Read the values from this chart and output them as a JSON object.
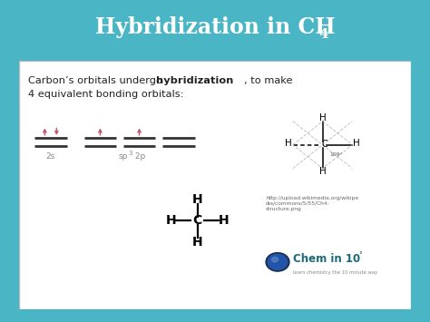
{
  "title_main": "Hybridization in CH",
  "title_sub4": "4",
  "bg_header_color": "#1e3d52",
  "bg_teal_color": "#4ab5c4",
  "bg_content_color": "#ffffff",
  "body_text1_normal": "Carbon’s orbitals undergo ",
  "body_text1_bold": "hybridization",
  "body_text1_rest": ", to make",
  "body_text2": "4 equivalent bonding orbitals:",
  "orbital_red": "#c0536a",
  "orbital_dark": "#333333",
  "url_text": "http://upload.wikimedia.org/wikipe\ndia/commons/5/55/Ch4-\nstructure.png",
  "chemin10_color": "#2a7a8c",
  "chemin10_text": "Chem in 10",
  "chemin10_degree": "°",
  "chemin10_sub": "learn chemistry the 10 minute way",
  "gray_label": "#888888"
}
